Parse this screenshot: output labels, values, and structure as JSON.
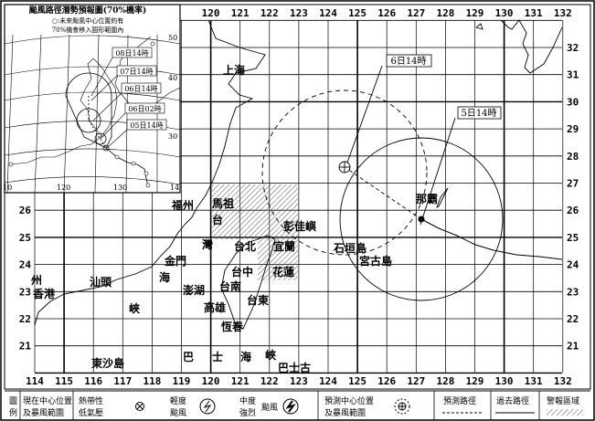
{
  "inset": {
    "title": "颱風路徑潛勢預報圖(70%機率)",
    "note_line1": "○:未來颱風中心位置約有",
    "note_line2": "70%機會移入圓形範圍內",
    "lat_labels": [
      "50",
      "40",
      "30"
    ],
    "lon_labels": [
      "10",
      "120",
      "130",
      "14"
    ],
    "time_boxes": [
      "08日14時",
      "07日14時",
      "06日14時",
      "06日02時",
      "05日14時"
    ]
  },
  "map": {
    "lon_labels": [
      "114",
      "115",
      "116",
      "117",
      "118",
      "119",
      "120",
      "121",
      "122",
      "123",
      "124",
      "125",
      "126",
      "127",
      "128",
      "129",
      "130",
      "131",
      "132"
    ],
    "lat_labels_left": [
      "26",
      "25",
      "24",
      "23",
      "22",
      "21"
    ],
    "lat_labels_right": [
      "32",
      "31",
      "30",
      "29",
      "28",
      "27",
      "26",
      "25",
      "24",
      "23",
      "22",
      "21"
    ],
    "places": [
      "上海",
      "福州",
      "馬祖",
      "台",
      "灣",
      "金門",
      "彭佳嶼",
      "台北",
      "宜蘭",
      "石垣島",
      "宮古島",
      "那霸",
      "台中",
      "花蓮",
      "汕頭",
      "海",
      "澎湖",
      "台南",
      "台東",
      "香港",
      "峽",
      "高雄",
      "恆春",
      "東沙島",
      "巴",
      "士",
      "海",
      "峽",
      "巴士古",
      "州"
    ],
    "current_label": "5日14時",
    "forecast_label": "6日14時",
    "current_center": {
      "lon": 127.2,
      "lat": 25.7,
      "radius_deg": 2.8
    },
    "forecast_center": {
      "lon": 124.5,
      "lat": 27.6,
      "radius_deg": 2.8
    },
    "colors": {
      "line": "#000000",
      "background": "#ffffff"
    }
  },
  "legend": {
    "title_1": "圖",
    "title_2": "例",
    "current_1": "現在中心位置",
    "current_2": "及暴風範圍",
    "td_1": "熱帶性",
    "td_2": "低氣壓",
    "mild_1": "輕度",
    "mild_2": "颱風",
    "mod_1": "中度",
    "mod_2": "強烈",
    "mod_3": "颱風",
    "forecast_1": "預測中心位置",
    "forecast_2": "及暴風範圍",
    "forecast_track": "預測路徑",
    "past_track": "過去路徑",
    "warning_area": "警報區域"
  }
}
